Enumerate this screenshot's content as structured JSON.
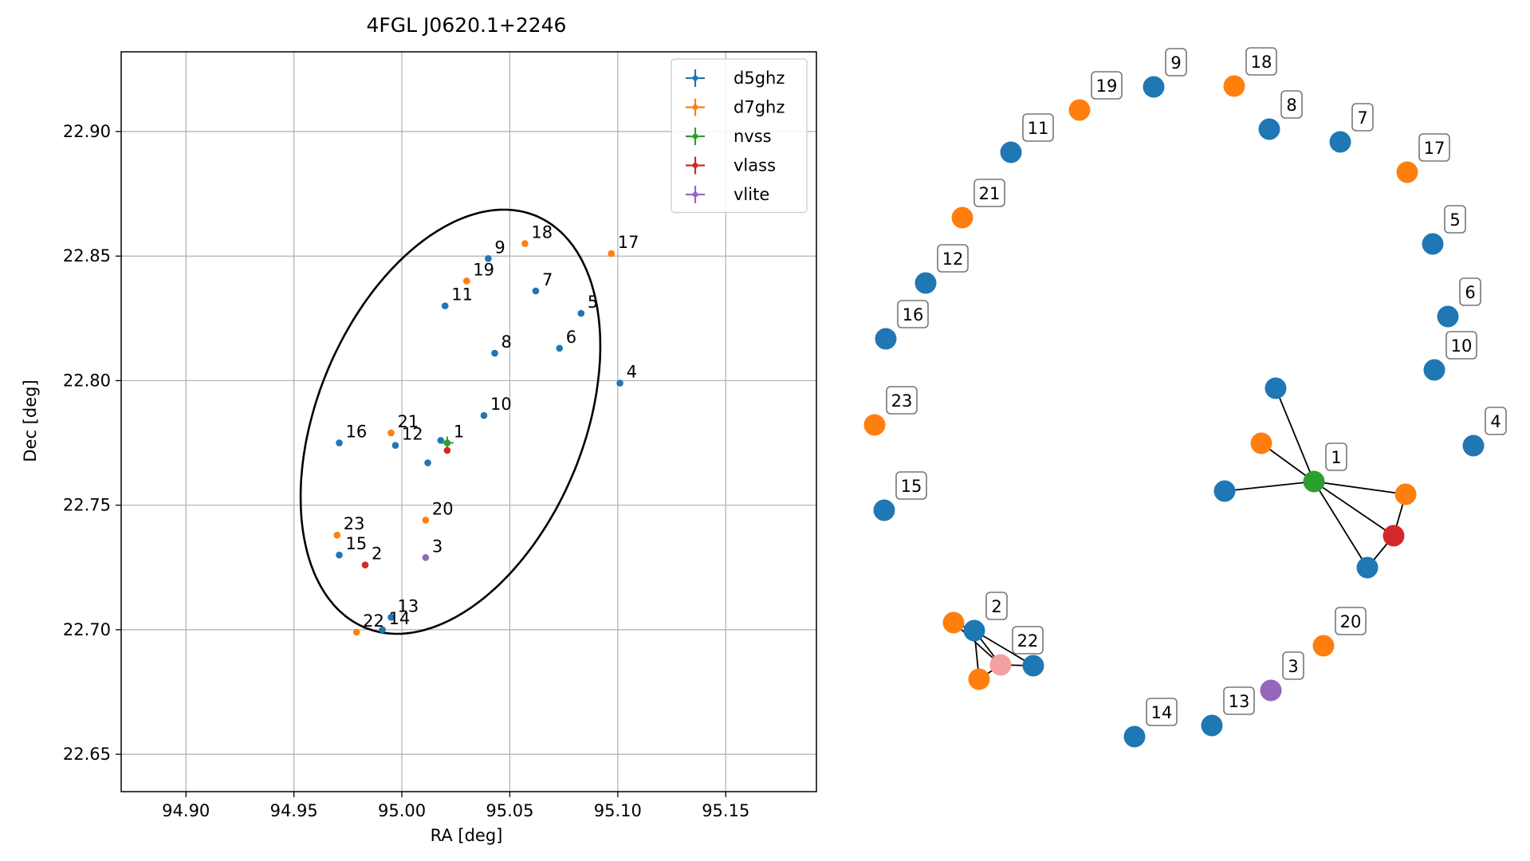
{
  "colors": {
    "d5ghz": "#1f77b4",
    "d7ghz": "#ff7f0e",
    "nvss": "#2ca02c",
    "vlass": "#d62728",
    "vlite": "#9467bd",
    "light_red": "#f4a0a0",
    "grid": "#b0b0b0",
    "axes": "#000000"
  },
  "chart_data": [
    {
      "type": "scatter",
      "title": "4FGL J0620.1+2246",
      "xlabel": "RA [deg]",
      "ylabel": "Dec [deg]",
      "xlim": [
        94.87,
        95.192
      ],
      "ylim": [
        22.635,
        22.932
      ],
      "xticks": [
        94.9,
        94.95,
        95.0,
        95.05,
        95.1,
        95.15
      ],
      "xtick_labels": [
        "94.90",
        "94.95",
        "95.00",
        "95.05",
        "95.10",
        "95.15"
      ],
      "yticks": [
        22.65,
        22.7,
        22.75,
        22.8,
        22.85,
        22.9
      ],
      "ytick_labels": [
        "22.65",
        "22.70",
        "22.75",
        "22.80",
        "22.85",
        "22.90"
      ],
      "grid": true,
      "legend_position": "top-right",
      "legend": [
        "d5ghz",
        "d7ghz",
        "nvss",
        "vlass",
        "vlite"
      ],
      "ellipse": {
        "center": [
          95.0225,
          22.7835
        ],
        "semi_axes": [
          0.092,
          0.06
        ],
        "angle_deg": 60
      },
      "points": [
        {
          "survey": "d5ghz",
          "ra": 95.018,
          "dec": 22.776,
          "label": ""
        },
        {
          "survey": "nvss",
          "ra": 95.021,
          "dec": 22.775,
          "label": "1"
        },
        {
          "survey": "vlass",
          "ra": 95.021,
          "dec": 22.772,
          "label": ""
        },
        {
          "survey": "vlass",
          "ra": 94.983,
          "dec": 22.726,
          "label": "2"
        },
        {
          "survey": "vlite",
          "ra": 95.011,
          "dec": 22.729,
          "label": "3"
        },
        {
          "survey": "d5ghz",
          "ra": 95.101,
          "dec": 22.799,
          "label": "4"
        },
        {
          "survey": "d5ghz",
          "ra": 95.083,
          "dec": 22.827,
          "label": "5"
        },
        {
          "survey": "d5ghz",
          "ra": 95.073,
          "dec": 22.813,
          "label": "6"
        },
        {
          "survey": "d5ghz",
          "ra": 95.062,
          "dec": 22.836,
          "label": "7"
        },
        {
          "survey": "d5ghz",
          "ra": 95.043,
          "dec": 22.811,
          "label": "8"
        },
        {
          "survey": "d5ghz",
          "ra": 95.04,
          "dec": 22.849,
          "label": "9"
        },
        {
          "survey": "d5ghz",
          "ra": 95.038,
          "dec": 22.786,
          "label": "10"
        },
        {
          "survey": "d5ghz",
          "ra": 95.02,
          "dec": 22.83,
          "label": "11"
        },
        {
          "survey": "d5ghz",
          "ra": 94.997,
          "dec": 22.774,
          "label": "12"
        },
        {
          "survey": "d5ghz",
          "ra": 94.995,
          "dec": 22.705,
          "label": "13"
        },
        {
          "survey": "d5ghz",
          "ra": 94.991,
          "dec": 22.7,
          "label": "14"
        },
        {
          "survey": "d5ghz",
          "ra": 94.971,
          "dec": 22.73,
          "label": "15"
        },
        {
          "survey": "d5ghz",
          "ra": 94.971,
          "dec": 22.775,
          "label": "16"
        },
        {
          "survey": "d5ghz",
          "ra": 95.012,
          "dec": 22.767,
          "label": ""
        },
        {
          "survey": "d7ghz",
          "ra": 95.097,
          "dec": 22.851,
          "label": "17"
        },
        {
          "survey": "d7ghz",
          "ra": 95.057,
          "dec": 22.855,
          "label": "18"
        },
        {
          "survey": "d7ghz",
          "ra": 95.03,
          "dec": 22.84,
          "label": "19"
        },
        {
          "survey": "d7ghz",
          "ra": 95.011,
          "dec": 22.744,
          "label": "20"
        },
        {
          "survey": "d7ghz",
          "ra": 94.995,
          "dec": 22.779,
          "label": "21"
        },
        {
          "survey": "d7ghz",
          "ra": 94.979,
          "dec": 22.699,
          "label": "22"
        },
        {
          "survey": "d7ghz",
          "ra": 94.97,
          "dec": 22.738,
          "label": "23"
        }
      ]
    },
    {
      "type": "network",
      "nodes": [
        {
          "id": "1",
          "survey": "nvss",
          "label": "1"
        },
        {
          "id": "1a",
          "survey": "d5ghz",
          "label": ""
        },
        {
          "id": "1b",
          "survey": "d7ghz",
          "label": ""
        },
        {
          "id": "1c",
          "survey": "d5ghz",
          "label": ""
        },
        {
          "id": "1d",
          "survey": "d7ghz",
          "label": ""
        },
        {
          "id": "1e",
          "survey": "vlass",
          "label": ""
        },
        {
          "id": "1f",
          "survey": "d5ghz",
          "label": ""
        },
        {
          "id": "2",
          "survey": "d5ghz",
          "label": "2"
        },
        {
          "id": "2a",
          "survey": "d7ghz",
          "label": ""
        },
        {
          "id": "2b",
          "survey": "d7ghz",
          "label": ""
        },
        {
          "id": "2c",
          "survey": "d5ghz",
          "label": ""
        },
        {
          "id": "22",
          "survey": "light_red",
          "label": "22"
        },
        {
          "id": "3",
          "survey": "vlite",
          "label": "3"
        },
        {
          "id": "4",
          "survey": "d5ghz",
          "label": "4"
        },
        {
          "id": "5",
          "survey": "d5ghz",
          "label": "5"
        },
        {
          "id": "6",
          "survey": "d5ghz",
          "label": "6"
        },
        {
          "id": "7",
          "survey": "d5ghz",
          "label": "7"
        },
        {
          "id": "8",
          "survey": "d5ghz",
          "label": "8"
        },
        {
          "id": "9",
          "survey": "d5ghz",
          "label": "9"
        },
        {
          "id": "10",
          "survey": "d5ghz",
          "label": "10"
        },
        {
          "id": "11",
          "survey": "d5ghz",
          "label": "11"
        },
        {
          "id": "12",
          "survey": "d5ghz",
          "label": "12"
        },
        {
          "id": "13",
          "survey": "d5ghz",
          "label": "13"
        },
        {
          "id": "14",
          "survey": "d5ghz",
          "label": "14"
        },
        {
          "id": "15",
          "survey": "d5ghz",
          "label": "15"
        },
        {
          "id": "16",
          "survey": "d5ghz",
          "label": "16"
        },
        {
          "id": "17",
          "survey": "d7ghz",
          "label": "17"
        },
        {
          "id": "18",
          "survey": "d7ghz",
          "label": "18"
        },
        {
          "id": "19",
          "survey": "d7ghz",
          "label": "19"
        },
        {
          "id": "20",
          "survey": "d7ghz",
          "label": "20"
        },
        {
          "id": "21",
          "survey": "d7ghz",
          "label": "21"
        },
        {
          "id": "23",
          "survey": "d7ghz",
          "label": "23"
        }
      ],
      "edges": [
        [
          "1",
          "1a"
        ],
        [
          "1",
          "1b"
        ],
        [
          "1",
          "1c"
        ],
        [
          "1",
          "1d"
        ],
        [
          "1",
          "1e"
        ],
        [
          "1",
          "1f"
        ],
        [
          "1d",
          "1e"
        ],
        [
          "1e",
          "1f"
        ],
        [
          "2",
          "2a"
        ],
        [
          "2",
          "2b"
        ],
        [
          "2",
          "2c"
        ],
        [
          "2",
          "22"
        ],
        [
          "2a",
          "22"
        ],
        [
          "2c",
          "22"
        ],
        [
          "2b",
          "22"
        ]
      ]
    }
  ]
}
